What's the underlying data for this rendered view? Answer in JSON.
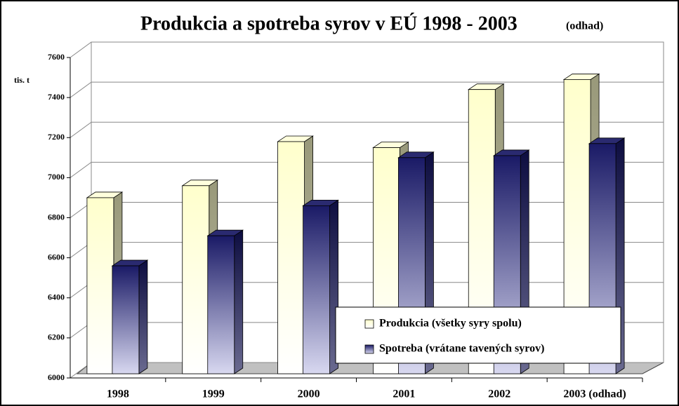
{
  "chart_data": {
    "type": "bar3d",
    "title": "Produkcia a spotreba syrov v EÚ 1998 - 2003",
    "title_suffix": "(odhad)",
    "y_label": "tis. t",
    "categories": [
      "1998",
      "1999",
      "2000",
      "2001",
      "2002",
      "2003 (odhad)"
    ],
    "series": [
      {
        "name": "Produkcia (všetky syry spolu)",
        "color": "#ffffcc",
        "values": [
          6900,
          6960,
          7180,
          7150,
          7440,
          7490
        ]
      },
      {
        "name": "Spotreba (vrátane tavených syrov)",
        "color": "#1a1a66",
        "values": [
          6560,
          6710,
          6860,
          7100,
          7110,
          7170
        ]
      }
    ],
    "ylim": [
      6000,
      7600
    ],
    "yticks": [
      6000,
      6200,
      6400,
      6600,
      6800,
      7000,
      7200,
      7400,
      7600
    ],
    "grid": true,
    "legend": "bottom-right"
  }
}
